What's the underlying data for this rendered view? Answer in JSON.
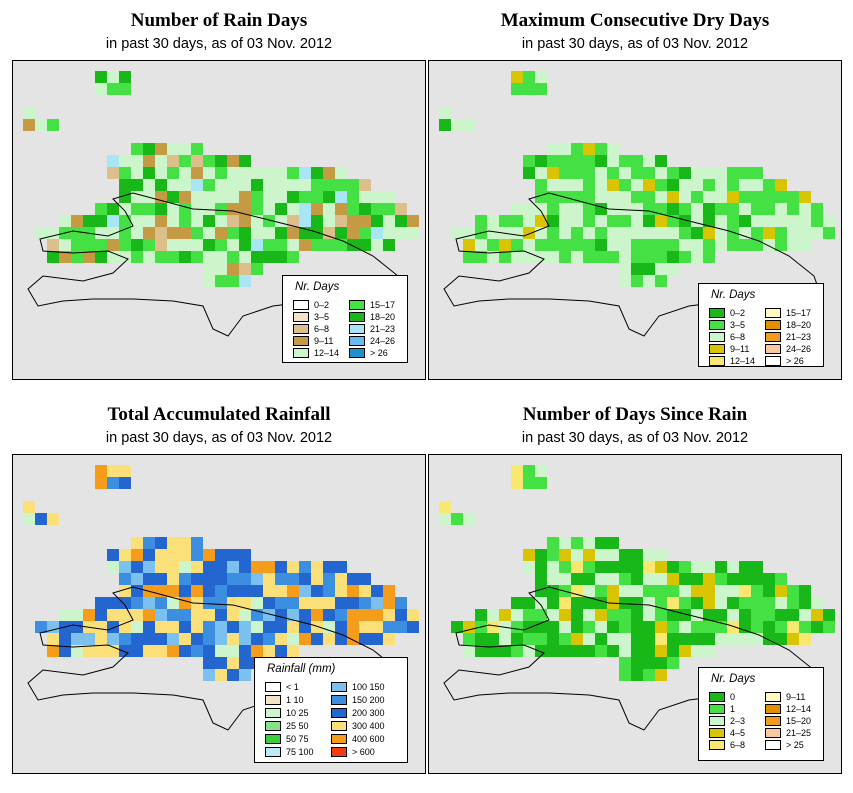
{
  "panels": [
    {
      "title": "Number of Rain Days",
      "subtitle": "in past 30 days, as of  03 Nov. 2012",
      "legend_title": "Nr. Days",
      "legend": [
        {
          "label": "0–2",
          "color": "#ffffff"
        },
        {
          "label": "3–5",
          "color": "#f5e3c8"
        },
        {
          "label": "6–8",
          "color": "#dcbf8a"
        },
        {
          "label": "9–11",
          "color": "#c59a44"
        },
        {
          "label": "12–14",
          "color": "#ccf5cc"
        },
        {
          "label": "15–17",
          "color": "#44e044"
        },
        {
          "label": "18–20",
          "color": "#18b818"
        },
        {
          "label": "21–23",
          "color": "#a8e6f6"
        },
        {
          "label": "24–26",
          "color": "#6ab8f0"
        },
        {
          "label": "> 26",
          "color": "#1e90d0"
        }
      ]
    },
    {
      "title": "Maximum Consecutive Dry Days",
      "subtitle": "in past 30 days, as of  03 Nov. 2012",
      "legend_title": "Nr. Days",
      "legend": [
        {
          "label": "0–2",
          "color": "#18b818"
        },
        {
          "label": "3–5",
          "color": "#44e044"
        },
        {
          "label": "6–8",
          "color": "#ccf5cc"
        },
        {
          "label": "9–11",
          "color": "#d8c400"
        },
        {
          "label": "12–14",
          "color": "#f8e870"
        },
        {
          "label": "15–17",
          "color": "#fff8c0"
        },
        {
          "label": "18–20",
          "color": "#e09000"
        },
        {
          "label": "21–23",
          "color": "#f09a20"
        },
        {
          "label": "24–26",
          "color": "#f8c8a0"
        },
        {
          "label": "> 26",
          "color": "#ffffff"
        }
      ]
    },
    {
      "title": "Total Accumulated Rainfall",
      "subtitle": "in past 30 days, as of  03 Nov. 2012",
      "legend_title": "Rainfall (mm)",
      "legend": [
        {
          "label": "< 1",
          "color": "#ffffff"
        },
        {
          "label": "1    10",
          "color": "#f5e3c8"
        },
        {
          "label": "10    25",
          "color": "#ccf5cc"
        },
        {
          "label": "25    50",
          "color": "#88e088"
        },
        {
          "label": "50    75",
          "color": "#3ccc3c"
        },
        {
          "label": "75   100",
          "color": "#b8ecf8"
        },
        {
          "label": "100   150",
          "color": "#7cc0f0"
        },
        {
          "label": "150   200",
          "color": "#3c8ee0"
        },
        {
          "label": "200   300",
          "color": "#2466d0"
        },
        {
          "label": "300   400",
          "color": "#fbe07a"
        },
        {
          "label": "400   600",
          "color": "#f59c1a"
        },
        {
          "label": "> 600",
          "color": "#f03c10"
        }
      ]
    },
    {
      "title": "Number of Days Since Rain",
      "subtitle": "in past 30 days, as of  03 Nov. 2012",
      "legend_title": "Nr. Days",
      "legend": [
        {
          "label": "0",
          "color": "#18b818"
        },
        {
          "label": "1",
          "color": "#44e044"
        },
        {
          "label": "2–3",
          "color": "#ccf5cc"
        },
        {
          "label": "4–5",
          "color": "#d8c400"
        },
        {
          "label": "6–8",
          "color": "#f8e870"
        },
        {
          "label": "9–11",
          "color": "#fff8c0"
        },
        {
          "label": "12–14",
          "color": "#e09000"
        },
        {
          "label": "15–20",
          "color": "#f09a20"
        },
        {
          "label": "21–25",
          "color": "#f8c8a0"
        },
        {
          "label": "> 25",
          "color": "#ffffff"
        }
      ]
    }
  ]
}
